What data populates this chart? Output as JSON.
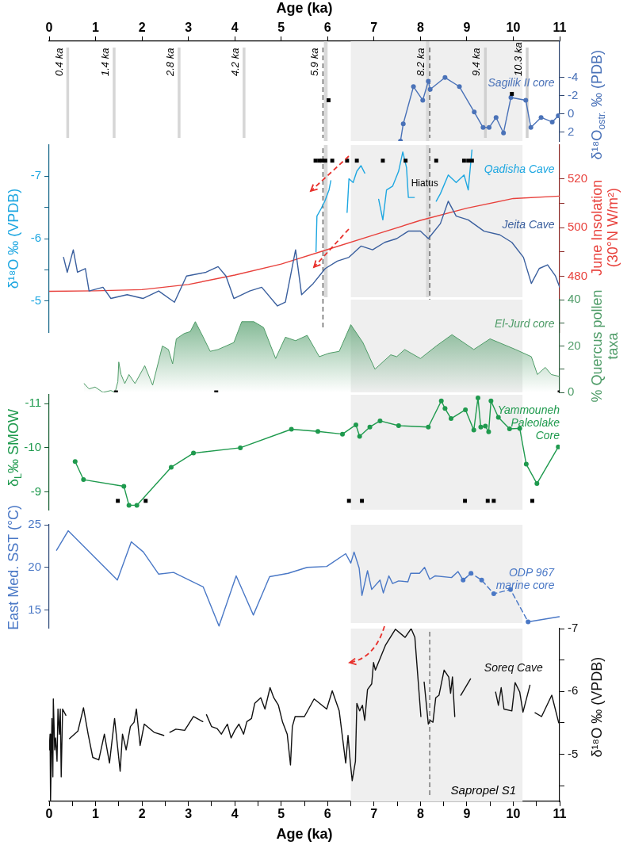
{
  "chart_data": [
    {
      "type": "line",
      "xlabel": "Age (ka)",
      "y2label": "δ¹⁸O$_{ostr.}$ ‰ (PDB)",
      "xlim": [
        0,
        11
      ],
      "xticks": [
        0,
        1,
        2,
        3,
        4,
        5,
        6,
        7,
        8,
        9,
        10,
        11
      ],
      "y2lim": [
        3,
        -8
      ],
      "y2ticks": [
        -4,
        -2,
        0,
        2
      ],
      "series": [
        {
          "name": "Sagilik II core",
          "color": "#4a72b8",
          "axis": "y2",
          "marker": "circle",
          "x": [
            7.57,
            7.63,
            7.85,
            8.05,
            8.17,
            8.21,
            8.53,
            8.84,
            9.16,
            9.35,
            9.48,
            9.63,
            9.79,
            9.95,
            10.27,
            10.38,
            10.6,
            10.84,
            10.97
          ],
          "values": [
            3.0,
            1.1,
            -3.0,
            -1.5,
            -3.6,
            -2.7,
            -4.0,
            -3.0,
            -0.2,
            1.5,
            1.5,
            0.4,
            2.1,
            -1.8,
            -1.5,
            1.5,
            0.4,
            0.9,
            0.2
          ]
        },
        {
          "type": "scatter",
          "color": "#000000",
          "axis": "y2",
          "marker": "square",
          "x": [
            6.02,
            9.97
          ],
          "values": [
            -1.5,
            -2.2
          ]
        }
      ],
      "bands": [
        {
          "axis": "x",
          "from": 6.5,
          "to": 10.2,
          "color": "#efefef"
        },
        {
          "axis": "x",
          "from": 5.92,
          "to": 6.0,
          "color": "#d9d9d9"
        },
        {
          "axis": "x",
          "from": 8.12,
          "to": 8.19,
          "color": "#d9d9d9"
        }
      ],
      "ref_lines": [
        {
          "axis": "x",
          "value": 0.4,
          "label": "0.4 ka",
          "color": "#d6d6d6"
        },
        {
          "axis": "x",
          "value": 1.4,
          "label": "1.4 ka",
          "color": "#d6d6d6"
        },
        {
          "axis": "x",
          "value": 2.8,
          "label": "2.8 ka",
          "color": "#d6d6d6"
        },
        {
          "axis": "x",
          "value": 4.2,
          "label": "4.2 ka",
          "color": "#d6d6d6"
        },
        {
          "axis": "x",
          "value": 5.9,
          "label": "5.9 ka",
          "color": "#555555",
          "line_style": "dashed"
        },
        {
          "axis": "x",
          "value": 8.2,
          "label": "8.2 ka",
          "color": "#555555",
          "line_style": "dashed"
        },
        {
          "axis": "x",
          "value": 9.4,
          "label": "9.4 ka",
          "color": "#d0d0d0"
        },
        {
          "axis": "x",
          "value": 10.3,
          "label": "10.3 ka",
          "color": "#d0d0d0"
        }
      ]
    },
    {
      "type": "line",
      "ylabel": "δ¹⁸O ‰ (VPDB)",
      "y2label": "June Insolation (30°N W/m²)",
      "tick_labels": "y",
      "xlim": [
        0,
        11
      ],
      "ylim": [
        -4.5,
        -7.5
      ],
      "yticks": [
        -7,
        {
          "value": -6.5,
          "label": null
        },
        -6,
        {
          "value": -5.5,
          "label": null
        },
        -5
      ],
      "y2lim": [
        457,
        534
      ],
      "y2ticks": [
        480,
        {
          "value": 490,
          "label": null
        },
        500,
        {
          "value": 510,
          "label": null
        },
        520
      ],
      "series": [
        {
          "name": "Qadisha Cave",
          "color": "#1ea7e1",
          "x": [
            5.75,
            5.77,
            5.86,
            5.94,
            6.03,
            6.07,
            6.2,
            6.42,
            6.46,
            6.55,
            6.63,
            6.72,
            6.8,
            6.95,
            7.1,
            7.19,
            7.27,
            7.4,
            7.53,
            7.62,
            7.7,
            7.74,
            7.87,
            8.1,
            8.34,
            8.43,
            8.6,
            8.77,
            8.94,
            9.03,
            9.11
          ],
          "values": [
            -5.79,
            -6.36,
            -6.48,
            -6.6,
            -6.78,
            -6.93,
            null,
            -6.42,
            -6.96,
            -6.9,
            -7.08,
            -7.17,
            -7.05,
            null,
            -6.63,
            -6.3,
            -6.78,
            -6.84,
            -7.08,
            -7.39,
            -7.14,
            -6.66,
            -6.66,
            null,
            -6.6,
            -6.72,
            -7.02,
            -6.9,
            -7.02,
            -6.78,
            -7.42
          ]
        },
        {
          "name": "Jeita Cave",
          "color": "#3a5f9e",
          "x": [
            0.31,
            0.39,
            0.52,
            0.61,
            0.78,
            0.86,
            1.16,
            1.33,
            1.68,
            2.02,
            2.36,
            2.7,
            2.96,
            3.38,
            3.64,
            3.81,
            3.98,
            4.32,
            4.58,
            4.92,
            5.09,
            5.31,
            5.44,
            5.69,
            5.95,
            6.21,
            6.46,
            6.72,
            6.97,
            7.23,
            7.49,
            7.74,
            8.0,
            8.17,
            8.43,
            8.6,
            8.77,
            9.03,
            9.37,
            9.71,
            9.97,
            10.22,
            10.39,
            10.56,
            10.74,
            10.91,
            11.0
          ],
          "values": [
            -5.7,
            -5.46,
            -5.82,
            -5.46,
            -5.52,
            -5.16,
            -5.22,
            -5.04,
            -5.1,
            -5.04,
            -5.16,
            -4.98,
            -5.4,
            -5.46,
            -5.55,
            -5.4,
            -5.04,
            -5.16,
            -5.22,
            -4.92,
            -4.98,
            -5.82,
            -5.1,
            -5.28,
            -5.52,
            -5.64,
            -5.7,
            -5.88,
            -5.82,
            -5.94,
            -6.0,
            -6.12,
            -6.12,
            -6.0,
            -6.24,
            -6.6,
            -6.36,
            -6.3,
            -6.12,
            -6.06,
            -5.94,
            -5.7,
            -5.28,
            -5.52,
            -5.58,
            -5.4,
            -5.22
          ]
        },
        {
          "color": "#e8413c",
          "axis": "y2",
          "x": [
            0,
            1,
            2,
            3,
            4,
            5,
            6,
            7,
            8,
            9,
            10,
            11
          ],
          "values": [
            473.8,
            474,
            474.5,
            476.6,
            480.5,
            485,
            491,
            497,
            503,
            508,
            512,
            513
          ]
        },
        {
          "type": "scatter",
          "color": "#000000",
          "marker": "square",
          "x": [
            5.74,
            5.82,
            5.88,
            5.95,
            6.1,
            6.42,
            6.63,
            7.19,
            7.68,
            8.34,
            8.94,
            9.03,
            9.11
          ],
          "values": [
            -7.25,
            -7.25,
            -7.25,
            -7.25,
            -7.25,
            -7.25,
            -7.25,
            -7.25,
            -7.25,
            -7.25,
            -7.25,
            -7.25,
            -7.25
          ]
        }
      ],
      "bands": [
        {
          "axis": "x",
          "from": 6.5,
          "to": 10.2,
          "color": "#efefef"
        },
        {
          "axis": "x",
          "from": 5.92,
          "to": 6.0,
          "color": "#d9d9d9"
        },
        {
          "axis": "x",
          "from": 8.12,
          "to": 8.19,
          "color": "#d9d9d9"
        }
      ],
      "ref_lines": [
        {
          "axis": "x",
          "value": 5.9,
          "color": "#555555",
          "line_style": "dashed"
        },
        {
          "axis": "x",
          "value": 8.2,
          "color": "#555555",
          "line_style": "dashed"
        }
      ],
      "annotations": [
        {
          "text": "Hiatus",
          "x": 8.09,
          "y": -6.88
        }
      ]
    },
    {
      "type": "area",
      "y2label": "% Quercus pollen taxa",
      "tick_labels": "y",
      "xlim": [
        0,
        11
      ],
      "y2lim": [
        0,
        40
      ],
      "y2ticks": [
        0,
        {
          "value": 10,
          "label": null
        },
        20,
        {
          "value": 30,
          "label": null
        },
        40
      ],
      "series": [
        {
          "name": "El-Jurd core",
          "color": "#4f9c68",
          "axis": "y2",
          "x": [
            0.75,
            0.86,
            0.99,
            1.16,
            1.33,
            1.42,
            1.48,
            1.5,
            1.55,
            1.63,
            1.72,
            1.85,
            2.06,
            2.23,
            2.44,
            2.57,
            2.66,
            2.74,
            2.91,
            3.04,
            3.15,
            3.3,
            3.47,
            3.64,
            3.98,
            4.15,
            4.41,
            4.62,
            4.88,
            5.09,
            5.31,
            5.56,
            5.82,
            6.03,
            6.25,
            6.5,
            6.76,
            7.02,
            7.36,
            7.49,
            7.66,
            8.0,
            8.34,
            8.68,
            9.15,
            9.5,
            10.05,
            10.39,
            10.52,
            10.69,
            10.82,
            10.99
          ],
          "values": [
            3.8,
            1.5,
            2.3,
            0,
            0.8,
            0,
            4.6,
            13.1,
            7.7,
            3.8,
            7.7,
            3.8,
            11.5,
            3.1,
            20,
            18.5,
            12.3,
            23.1,
            25.4,
            26.2,
            30.5,
            24.6,
            17.7,
            18.5,
            21.5,
            30.5,
            30.5,
            28,
            14.6,
            23.8,
            22.3,
            24.6,
            15.4,
            16.9,
            17.7,
            29.2,
            21.5,
            10,
            16.2,
            15.4,
            18.5,
            14.6,
            20,
            24.9,
            18.5,
            23.1,
            18.5,
            15.4,
            7.7,
            10.8,
            7.7,
            6.9
          ]
        },
        {
          "type": "scatter",
          "color": "#000000",
          "axis": "y2",
          "marker": "square",
          "x": [
            1.44,
            3.6,
            11.0
          ],
          "values": [
            0,
            0,
            0
          ]
        }
      ],
      "bands": [
        {
          "axis": "x",
          "from": 6.5,
          "to": 10.2,
          "color": "#efefef"
        }
      ]
    },
    {
      "type": "line",
      "ylabel": "δ$_{L}$‰ SMOW",
      "tick_labels": "y",
      "xlim": [
        0,
        11
      ],
      "ylim": [
        -8.6,
        -11.2
      ],
      "yticks": [
        -11,
        -10,
        -9
      ],
      "series": [
        {
          "name": "Yammouneh Paleolake Core",
          "color": "#1f9a4e",
          "marker": "circle",
          "x": [
            0.56,
            0.74,
            1.61,
            1.72,
            1.89,
            2.63,
            3.11,
            4.12,
            5.22,
            5.79,
            6.32,
            6.61,
            6.69,
            6.91,
            7.13,
            7.53,
            8.17,
            8.45,
            8.53,
            8.66,
            8.97,
            9.15,
            9.24,
            9.3,
            9.4,
            9.47,
            9.52,
            9.68,
            9.92,
            10.14,
            10.28,
            10.51,
            10.97
          ],
          "values": [
            -9.69,
            -9.28,
            -9.13,
            -8.7,
            -8.7,
            -9.56,
            -9.88,
            -10.0,
            -10.42,
            -10.37,
            -10.31,
            -10.52,
            -10.26,
            -10.47,
            -10.61,
            -10.5,
            -10.47,
            -11.06,
            -10.89,
            -10.66,
            -10.86,
            -10.4,
            -11.13,
            -10.47,
            -10.49,
            -10.36,
            -11.06,
            -10.69,
            -10.43,
            -10.44,
            -9.63,
            -9.19,
            -10.02
          ]
        },
        {
          "type": "scatter",
          "color": "#000000",
          "marker": "square",
          "x": [
            1.48,
            2.08,
            6.46,
            6.74,
            8.96,
            9.45,
            9.58,
            10.41
          ],
          "values": [
            -8.8,
            -8.8,
            -8.8,
            -8.8,
            -8.8,
            -8.8,
            -8.8,
            -8.8
          ]
        }
      ],
      "bands": [
        {
          "axis": "x",
          "from": 6.5,
          "to": 10.2,
          "color": "#efefef"
        }
      ]
    },
    {
      "type": "line",
      "ylabel": "East Med. SST (°C)",
      "tick_labels": "y",
      "xlim": [
        0,
        11
      ],
      "ylim": [
        12.9,
        25
      ],
      "yticks": [
        15,
        20,
        25
      ],
      "series": [
        {
          "name": "ODP 967 marine core",
          "color": "#4a78c6",
          "x": [
            0.16,
            0.41,
            1.47,
            1.77,
            2.03,
            2.36,
            2.68,
            3.32,
            3.66,
            4.03,
            4.4,
            4.75,
            5.15,
            5.56,
            5.98,
            6.39,
            6.5,
            6.57,
            6.68,
            6.74,
            6.86,
            6.95,
            7.13,
            7.2,
            7.32,
            7.4,
            7.53,
            7.73,
            7.79,
            7.98,
            8.09,
            8.2,
            8.32,
            8.67,
            8.81,
            8.92,
            9.09
          ],
          "values": [
            22.0,
            24.3,
            18.5,
            23.0,
            21.8,
            19.2,
            19.4,
            17.7,
            13.1,
            19.0,
            14.4,
            18.9,
            19.3,
            20.0,
            20.1,
            21.6,
            20.5,
            21.8,
            19.9,
            16.7,
            19.6,
            17.4,
            18.5,
            17.0,
            19.0,
            18.1,
            18.4,
            18.3,
            19.3,
            19.3,
            20.0,
            18.6,
            19.0,
            18.8,
            19.5,
            18.5,
            19.3
          ]
        },
        {
          "color": "#4a78c6",
          "marker": "circle",
          "line_style": "dashed",
          "x": [
            8.92,
            9.09,
            9.32,
            9.58,
            9.94,
            10.32
          ],
          "values": [
            18.5,
            19.3,
            18.5,
            16.9,
            17.4,
            13.6
          ]
        },
        {
          "color": "#4a78c6",
          "x": [
            10.32,
            10.99
          ],
          "values": [
            13.6,
            14.2
          ]
        }
      ],
      "bands": [
        {
          "axis": "x",
          "from": 6.5,
          "to": 10.2,
          "color": "#efefef"
        }
      ]
    },
    {
      "type": "line",
      "xlabel": "Age (ka)",
      "y2label": "δ¹⁸O ‰ (VPDB)",
      "xlim": [
        0,
        11
      ],
      "xticks": [
        0,
        {
          "value": 0.5,
          "label": null
        },
        1,
        {
          "value": 1.5,
          "label": null
        },
        2,
        {
          "value": 2.5,
          "label": null
        },
        3,
        {
          "value": 3.5,
          "label": null
        },
        4,
        {
          "value": 4.5,
          "label": null
        },
        5,
        {
          "value": 5.5,
          "label": null
        },
        6,
        {
          "value": 6.5,
          "label": null
        },
        7,
        {
          "value": 7.5,
          "label": null
        },
        8,
        {
          "value": 8.5,
          "label": null
        },
        9,
        {
          "value": 9.5,
          "label": null
        },
        10,
        {
          "value": 10.5,
          "label": null
        },
        11
      ],
      "y2lim": [
        -4.25,
        -7
      ],
      "y2ticks": [
        -7,
        {
          "value": -6.5,
          "label": null
        },
        -6,
        {
          "value": -5.5,
          "label": null
        },
        -5,
        {
          "value": -4.5,
          "label": null
        }
      ],
      "series": [
        {
          "name": "Soreq Cave",
          "color": "#111111",
          "axis": "y2",
          "x": [
            0,
            0.02,
            0.03,
            0.06,
            0.08,
            0.09,
            0.12,
            0.14,
            0.17,
            0.19,
            0.22,
            0.24,
            0.26,
            0.29,
            0.36,
            0.4,
            0.44,
            0.62,
            0.74,
            0.84,
            0.94,
            1.07,
            1.19,
            1.3,
            1.41,
            1.53,
            1.58,
            1.66,
            1.75,
            1.83,
            1.88,
            1.96,
            2.05,
            2.26,
            2.47,
            2.53,
            2.6,
            2.73,
            2.92,
            3.11,
            3.31,
            3.35,
            3.39,
            3.5,
            3.62,
            3.71,
            3.84,
            3.92,
            4.0,
            4.09,
            4.19,
            4.26,
            4.36,
            4.43,
            4.56,
            4.65,
            4.76,
            4.84,
            4.94,
            5.03,
            5.13,
            5.2,
            5.24,
            5.3,
            5.5,
            5.71,
            5.98,
            6.1,
            6.25,
            6.39,
            6.44,
            6.49,
            6.53,
            6.6,
            6.63,
            6.69,
            6.75,
            6.8,
            6.86,
            6.95,
            6.99,
            7.03,
            7.25,
            7.46,
            7.67,
            7.8,
            7.88,
            8.01,
            8.04,
            8.08,
            8.17,
            8.21,
            8.27,
            8.33,
            8.4,
            8.51,
            8.61,
            8.65,
            8.69,
            8.74,
            8.8,
            8.87,
            9.08,
            9.35,
            9.62,
            9.68,
            9.74,
            9.8,
            9.97,
            10.04,
            10.14,
            10.21,
            10.36,
            10.42,
            10.47,
            10.61,
            10.83,
            10.98
          ],
          "values": [
            -5.07,
            -5.32,
            -4.27,
            -5.57,
            -4.64,
            -5.88,
            -5.07,
            -5.26,
            -4.89,
            -5.72,
            -5.32,
            -5.72,
            -4.64,
            -5.72,
            -5.62,
            null,
            -5.25,
            -5.37,
            -5.74,
            -5.32,
            -4.95,
            -4.91,
            -5.32,
            -4.86,
            -5.57,
            -4.73,
            -5.32,
            -5.07,
            -5.44,
            -5.51,
            -5.72,
            -5.14,
            -5.48,
            -5.35,
            -5.3,
            null,
            -5.35,
            -5.4,
            -5.38,
            -5.6,
            -5.52,
            null,
            -5.63,
            -5.44,
            -5.41,
            -5.32,
            -5.48,
            -5.26,
            -5.38,
            -5.48,
            -5.32,
            -5.52,
            -5.57,
            -5.81,
            -5.9,
            -5.72,
            -6.06,
            -5.9,
            -5.78,
            -5.51,
            -5.32,
            -4.83,
            -5.44,
            -5.6,
            -5.6,
            -5.88,
            -5.72,
            -6.01,
            -5.69,
            -4.86,
            -5.3,
            -4.86,
            -4.58,
            -4.89,
            -5.81,
            -5.69,
            -5.78,
            -5.54,
            -6.03,
            -6.12,
            -6.46,
            -6.34,
            -6.74,
            -6.99,
            -6.86,
            -7.0,
            -6.86,
            -5.6,
            null,
            -6.15,
            -5.48,
            -5.54,
            -5.51,
            -5.9,
            -5.94,
            -6.34,
            -6.23,
            -5.97,
            -6.23,
            -5.6,
            null,
            -5.94,
            -6.2,
            null,
            -5.99,
            -5.78,
            -6.06,
            -5.72,
            -5.69,
            -6.14,
            -5.99,
            -5.67,
            -6.1,
            null,
            -5.66,
            -5.6,
            -5.94,
            -5.5
          ]
        }
      ],
      "bands": [
        {
          "axis": "x",
          "from": 6.5,
          "to": 10.2,
          "color": "#efefef",
          "label": "Sapropel S1"
        }
      ],
      "ref_lines": [
        {
          "axis": "x",
          "value": 8.2,
          "color": "#666666",
          "line_style": "dashed"
        }
      ]
    }
  ]
}
